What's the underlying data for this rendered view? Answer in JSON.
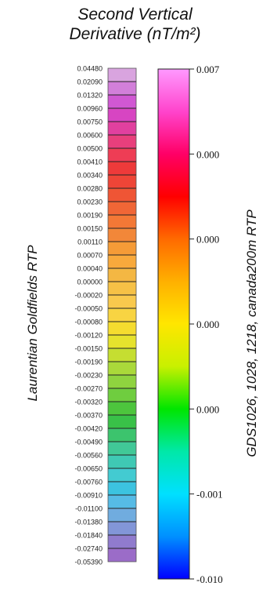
{
  "header": {
    "title_line1": "Second Vertical",
    "title_line2": "Derivative (nT/m²)"
  },
  "left_label": "Laurentian Goldfields RTP",
  "right_label": "GDS1026, 1028, 1218, canada200m RTP",
  "chart_data": {
    "type": "heatmap",
    "title": "Second Vertical Derivative (nT/m²)",
    "class_breaks": [
      "0.04480",
      "0.02090",
      "0.01320",
      "0.00960",
      "0.00750",
      "0.00600",
      "0.00500",
      "0.00410",
      "0.00340",
      "0.00280",
      "0.00230",
      "0.00190",
      "0.00150",
      "0.00110",
      "0.00070",
      "0.00040",
      "0.00000",
      "-0.00020",
      "-0.00050",
      "-0.00080",
      "-0.00120",
      "-0.00150",
      "-0.00190",
      "-0.00230",
      "-0.00270",
      "-0.00320",
      "-0.00370",
      "-0.00420",
      "-0.00490",
      "-0.00560",
      "-0.00650",
      "-0.00760",
      "-0.00910",
      "-0.01100",
      "-0.01380",
      "-0.01840",
      "-0.02740",
      "-0.05390"
    ],
    "colorbar_ticks": [
      "0.007",
      "0.000",
      "0.000",
      "0.000",
      "0.000",
      "-0.001",
      "-0.010"
    ],
    "colors": {
      "class_bar": [
        "#d9a4df",
        "#d27fda",
        "#d058d3",
        "#d745c2",
        "#e1409f",
        "#e83f7c",
        "#ee3d55",
        "#ee3a3a",
        "#ee4537",
        "#ef5535",
        "#f06636",
        "#f37836",
        "#f28739",
        "#f59b37",
        "#f8a93c",
        "#f4b743",
        "#f6c146",
        "#f9c94d",
        "#f8d442",
        "#f5dc2f",
        "#e6e22d",
        "#c5de31",
        "#aad93a",
        "#8fd33f",
        "#6fcd3f",
        "#4dc53d",
        "#39c148",
        "#3cc46d",
        "#41c897",
        "#3fc9b4",
        "#43cbd1",
        "#3cc3e0",
        "#56bbe6",
        "#70acdf",
        "#8296d8",
        "#907bcd",
        "#9b6cc8"
      ],
      "colorbar_gradient": [
        "#ff99ff",
        "#ff44cc",
        "#ff0066",
        "#ff0000",
        "#ff6a00",
        "#ffb000",
        "#ffe600",
        "#c8f000",
        "#00e600",
        "#00e8a8",
        "#00e0ff",
        "#0090ff",
        "#0000ff"
      ]
    }
  }
}
